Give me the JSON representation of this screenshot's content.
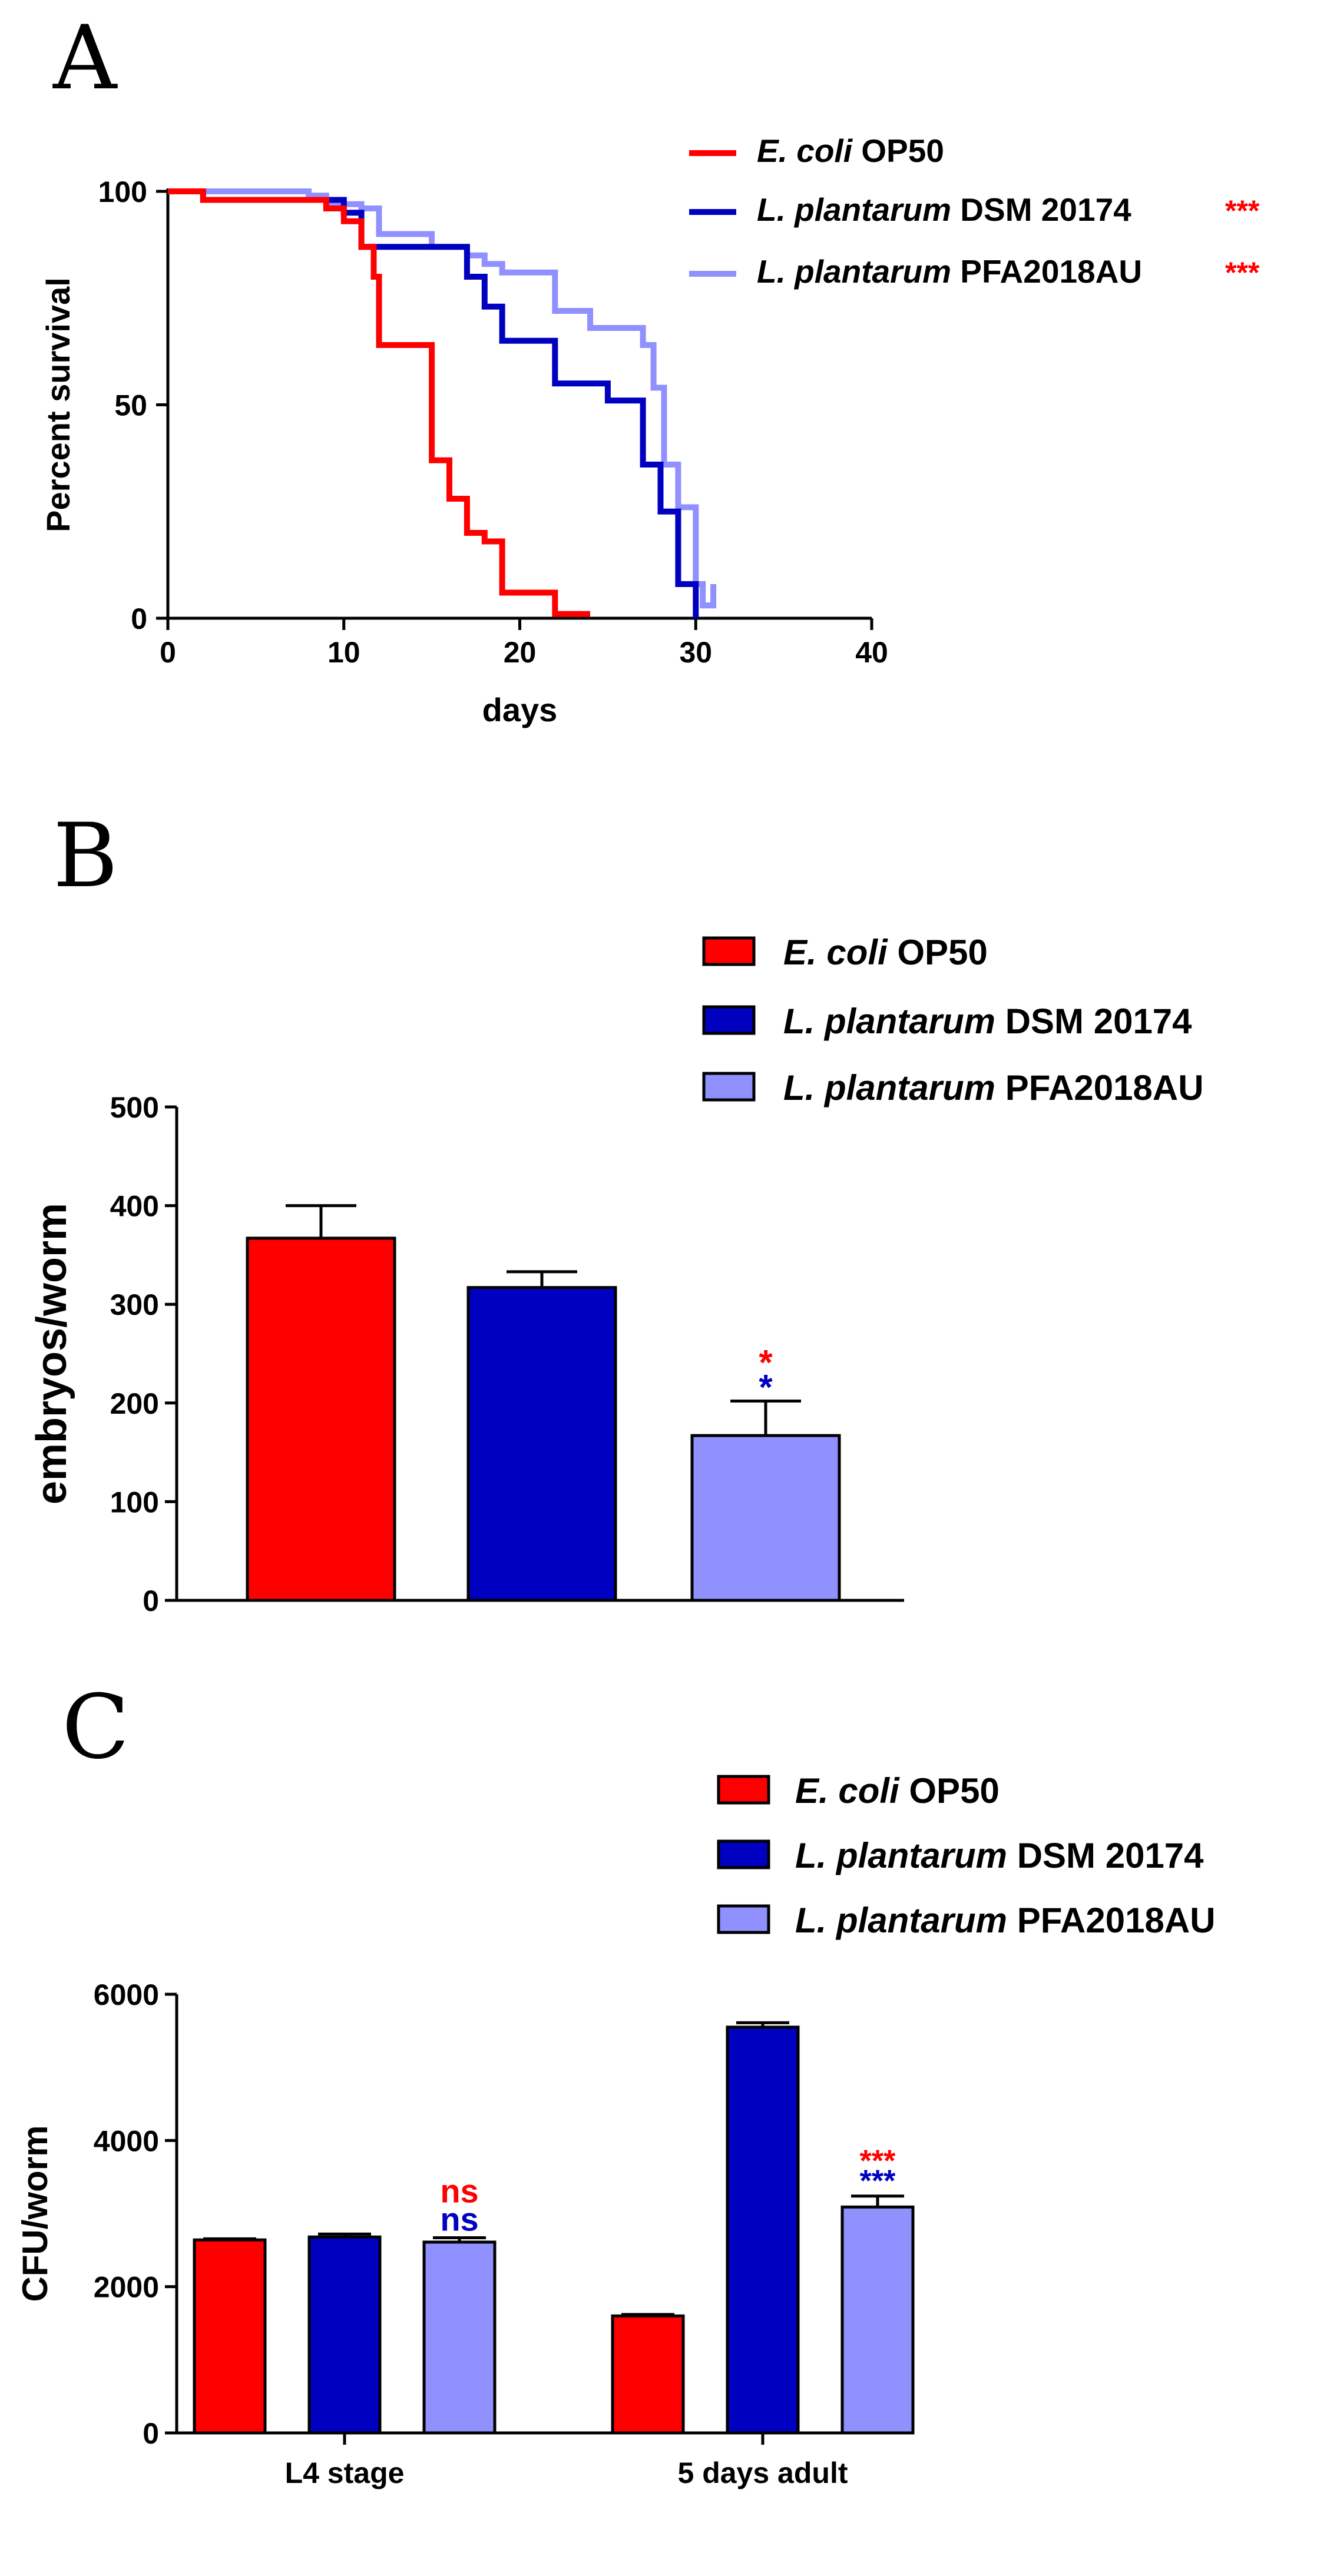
{
  "colors": {
    "ecoli": "#ff0000",
    "dsm": "#0000c0",
    "pfa": "#9090ff",
    "axis": "#000000"
  },
  "chart_data": [
    {
      "panel": "A",
      "type": "line",
      "subtype": "step",
      "xlabel": "days",
      "ylabel": "Percent survival",
      "xlim": [
        0,
        40
      ],
      "ylim": [
        0,
        100
      ],
      "xticks": [
        0,
        10,
        20,
        30,
        40
      ],
      "yticks": [
        0,
        50,
        100
      ],
      "grid": false,
      "legend_position": "top-right",
      "series": [
        {
          "key": "ecoli",
          "name_italic": "E. coli",
          "name_rest": " OP50",
          "significance": "",
          "points": [
            [
              0,
              100
            ],
            [
              2,
              100
            ],
            [
              2,
              98
            ],
            [
              9,
              98
            ],
            [
              9,
              96
            ],
            [
              10,
              96
            ],
            [
              10,
              93
            ],
            [
              11,
              93
            ],
            [
              11,
              87
            ],
            [
              11.7,
              87
            ],
            [
              11.7,
              80
            ],
            [
              12,
              80
            ],
            [
              12,
              64
            ],
            [
              15,
              64
            ],
            [
              15,
              37
            ],
            [
              16,
              37
            ],
            [
              16,
              28
            ],
            [
              17,
              28
            ],
            [
              17,
              20
            ],
            [
              18,
              20
            ],
            [
              18,
              18
            ],
            [
              19,
              18
            ],
            [
              19,
              6
            ],
            [
              22,
              6
            ],
            [
              22,
              1
            ],
            [
              24,
              1
            ]
          ]
        },
        {
          "key": "dsm",
          "name_italic": "L. plantarum",
          "name_rest": " DSM 20174",
          "significance": "***",
          "points": [
            [
              0,
              100
            ],
            [
              2,
              100
            ],
            [
              2,
              98
            ],
            [
              10,
              98
            ],
            [
              10,
              95
            ],
            [
              11,
              95
            ],
            [
              11,
              87
            ],
            [
              17,
              87
            ],
            [
              17,
              80
            ],
            [
              18,
              80
            ],
            [
              18,
              73
            ],
            [
              19,
              73
            ],
            [
              19,
              65
            ],
            [
              22,
              65
            ],
            [
              22,
              55
            ],
            [
              25,
              55
            ],
            [
              25,
              51
            ],
            [
              27,
              51
            ],
            [
              27,
              36
            ],
            [
              28,
              36
            ],
            [
              28,
              25
            ],
            [
              29,
              25
            ],
            [
              29,
              8
            ],
            [
              30,
              8
            ],
            [
              30,
              0
            ]
          ]
        },
        {
          "key": "pfa",
          "name_italic": "L. plantarum",
          "name_rest": " PFA2018AU",
          "significance": "***",
          "points": [
            [
              0,
              100
            ],
            [
              8,
              100
            ],
            [
              8,
              99
            ],
            [
              9,
              99
            ],
            [
              9,
              97
            ],
            [
              11,
              97
            ],
            [
              11,
              96
            ],
            [
              12,
              96
            ],
            [
              12,
              90
            ],
            [
              15,
              90
            ],
            [
              15,
              87
            ],
            [
              17,
              87
            ],
            [
              17,
              85
            ],
            [
              18,
              85
            ],
            [
              18,
              83
            ],
            [
              19,
              83
            ],
            [
              19,
              81
            ],
            [
              22,
              81
            ],
            [
              22,
              72
            ],
            [
              24,
              72
            ],
            [
              24,
              68
            ],
            [
              27,
              68
            ],
            [
              27,
              64
            ],
            [
              27.6,
              64
            ],
            [
              27.6,
              54
            ],
            [
              28.2,
              54
            ],
            [
              28.2,
              36
            ],
            [
              29,
              36
            ],
            [
              29,
              26
            ],
            [
              30,
              26
            ],
            [
              30,
              8
            ],
            [
              30.4,
              8
            ],
            [
              30.4,
              3
            ],
            [
              31,
              3
            ],
            [
              31,
              8
            ]
          ]
        }
      ]
    },
    {
      "panel": "B",
      "type": "bar",
      "xlabel": "",
      "ylabel": "embryos/worm",
      "ylim": [
        0,
        500
      ],
      "yticks": [
        0,
        100,
        200,
        300,
        400,
        500
      ],
      "grid": false,
      "legend_position": "top-right",
      "series": [
        {
          "key": "ecoli",
          "name_italic": "E. coli",
          "name_rest": " OP50",
          "value": 367,
          "error": 33,
          "sig_red": "",
          "sig_blue": ""
        },
        {
          "key": "dsm",
          "name_italic": "L. plantarum",
          "name_rest": " DSM 20174",
          "value": 317,
          "error": 16,
          "sig_red": "",
          "sig_blue": ""
        },
        {
          "key": "pfa",
          "name_italic": "L. plantarum",
          "name_rest": " PFA2018AU",
          "value": 167,
          "error": 35,
          "sig_red": "*",
          "sig_blue": "*"
        }
      ]
    },
    {
      "panel": "C",
      "type": "bar",
      "xlabel": "",
      "ylabel": "CFU/worm",
      "ylim": [
        0,
        6000
      ],
      "yticks": [
        0,
        2000,
        4000,
        6000
      ],
      "grid": false,
      "legend_position": "top-right",
      "categories": [
        "L4 stage",
        "5 days adult"
      ],
      "series": [
        {
          "key": "ecoli",
          "name_italic": "E. coli",
          "name_rest": " OP50",
          "values": [
            2640,
            1600
          ],
          "errors": [
            15,
            20
          ]
        },
        {
          "key": "dsm",
          "name_italic": "L. plantarum",
          "name_rest": " DSM 20174",
          "values": [
            2680,
            5550
          ],
          "errors": [
            40,
            60
          ]
        },
        {
          "key": "pfa",
          "name_italic": "L. plantarum",
          "name_rest": " PFA2018AU",
          "values": [
            2610,
            3090
          ],
          "errors": [
            60,
            150
          ]
        }
      ],
      "significance": [
        {
          "category": "L4 stage",
          "key": "pfa",
          "red": "ns",
          "blue": "ns"
        },
        {
          "category": "5 days adult",
          "key": "pfa",
          "red": "***",
          "blue": "***"
        }
      ]
    }
  ]
}
